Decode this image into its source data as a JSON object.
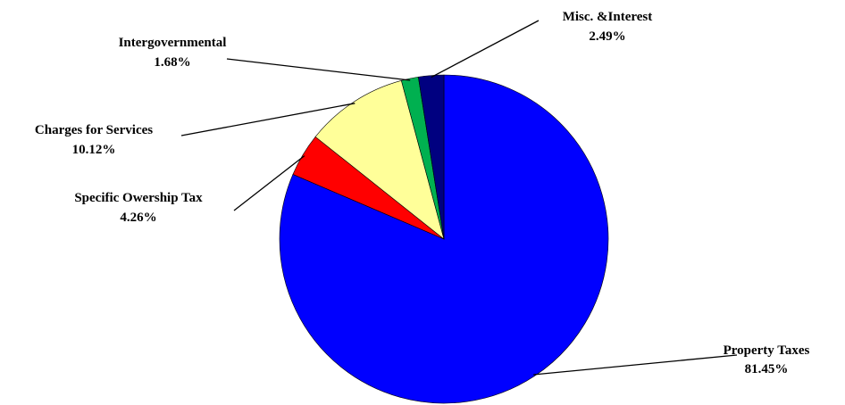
{
  "chart_data": {
    "type": "pie",
    "title": "",
    "start": "top, clockwise",
    "slices": [
      {
        "label": "Property Taxes",
        "value": 81.45,
        "value_label": "81.45%",
        "color": "#0000FF"
      },
      {
        "label": "Specific Owership Tax",
        "value": 4.26,
        "value_label": "4.26%",
        "color": "#FF0000"
      },
      {
        "label": "Charges for Services",
        "value": 10.12,
        "value_label": "10.12%",
        "color": "#FFFF99"
      },
      {
        "label": "Intergovernmental",
        "value": 1.68,
        "value_label": "1.68%",
        "color": "#00B050"
      },
      {
        "label": "Misc. &Interest",
        "value": 2.49,
        "value_label": "2.49%",
        "color": "#000080"
      }
    ]
  }
}
